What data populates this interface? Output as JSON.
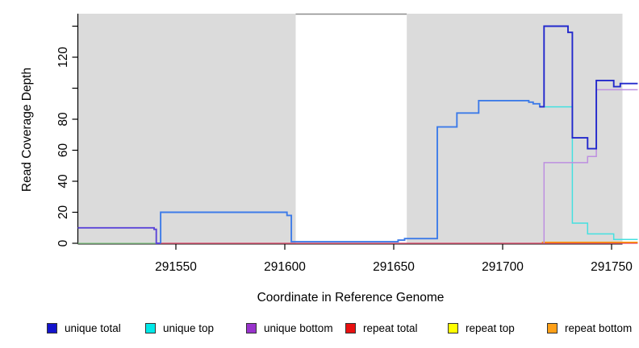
{
  "figure": {
    "y_axis_title": "Read Coverage Depth",
    "x_axis_title": "Coordinate in Reference Genome"
  },
  "legend": {
    "items": [
      {
        "label": "unique total",
        "color": "#1414CC"
      },
      {
        "label": "unique top",
        "color": "#00E8E8"
      },
      {
        "label": "unique bottom",
        "color": "#9933CC"
      },
      {
        "label": "repeat total",
        "color": "#E81010"
      },
      {
        "label": "repeat top",
        "color": "#FFFF00"
      },
      {
        "label": "repeat bottom",
        "color": "#FFA018"
      }
    ]
  },
  "chart_data": {
    "type": "line",
    "subtype": "step-coverage",
    "title": "",
    "xlabel": "Coordinate in Reference Genome",
    "ylabel": "Read Coverage Depth",
    "xlim": [
      291505,
      291762
    ],
    "ylim": [
      0,
      148
    ],
    "grid": false,
    "legend_position": "bottom",
    "x_ticks": [
      291550,
      291600,
      291650,
      291700,
      291750
    ],
    "y_ticks": [
      {
        "v": 0,
        "label": "0"
      },
      {
        "v": 20,
        "label": "20"
      },
      {
        "v": 40,
        "label": "40"
      },
      {
        "v": 60,
        "label": "60"
      },
      {
        "v": 80,
        "label": "80"
      },
      {
        "v": 100,
        "label": ""
      },
      {
        "v": 120,
        "label": "120"
      },
      {
        "v": 140,
        "label": ""
      }
    ],
    "background_bands": [
      {
        "from": 291505,
        "to": 291605,
        "color": "#DBDBDB"
      },
      {
        "from": 291605,
        "to": 291656,
        "color": "#FFFFFF",
        "top_border": "#8C8C8C"
      },
      {
        "from": 291656,
        "to": 291755,
        "color": "#DBDBDB"
      }
    ],
    "series": [
      {
        "name": "unique total",
        "color": "#1414CC",
        "points": [
          [
            291505,
            10
          ],
          [
            291540,
            9
          ],
          [
            291541,
            0
          ],
          [
            291543,
            20
          ],
          [
            291601,
            18
          ],
          [
            291603,
            1
          ],
          [
            291652,
            2
          ],
          [
            291655,
            3
          ],
          [
            291670,
            75
          ],
          [
            291679,
            84
          ],
          [
            291689,
            92
          ],
          [
            291712,
            91
          ],
          [
            291714,
            90
          ],
          [
            291717,
            88
          ],
          [
            291719,
            140
          ],
          [
            291730,
            136
          ],
          [
            291732,
            68
          ],
          [
            291739,
            61
          ],
          [
            291743,
            105
          ],
          [
            291751,
            101
          ],
          [
            291754,
            103
          ],
          [
            291762,
            103
          ]
        ]
      },
      {
        "name": "unique top",
        "color": "#00E8E8",
        "points": [
          [
            291505,
            0
          ],
          [
            291543,
            20
          ],
          [
            291601,
            18
          ],
          [
            291603,
            1
          ],
          [
            291652,
            2
          ],
          [
            291655,
            3
          ],
          [
            291670,
            75
          ],
          [
            291679,
            84
          ],
          [
            291689,
            92
          ],
          [
            291712,
            91
          ],
          [
            291714,
            90
          ],
          [
            291717,
            88
          ],
          [
            291732,
            13
          ],
          [
            291739,
            6
          ],
          [
            291751,
            2.5
          ],
          [
            291762,
            2.5
          ]
        ]
      },
      {
        "name": "unique bottom",
        "color": "#9933CC",
        "points": [
          [
            291505,
            10
          ],
          [
            291540,
            9
          ],
          [
            291541,
            0
          ],
          [
            291719,
            52
          ],
          [
            291739,
            56
          ],
          [
            291743,
            99
          ],
          [
            291762,
            99
          ]
        ]
      },
      {
        "name": "repeat total",
        "color": "#E81010",
        "points": [
          [
            291505,
            0
          ],
          [
            291762,
            0
          ]
        ]
      },
      {
        "name": "repeat top",
        "color": "#FFFF00",
        "points": [
          [
            291505,
            0
          ],
          [
            291762,
            0
          ]
        ]
      },
      {
        "name": "repeat bottom",
        "color": "#FFA018",
        "points": [
          [
            291718,
            0.7
          ],
          [
            291762,
            0.7
          ]
        ]
      }
    ],
    "render_layers": [
      {
        "name": "repeat-total-baseline",
        "color": "#E04466",
        "width": 1.2,
        "points": [
          [
            291543,
            0
          ],
          [
            291762,
            0
          ]
        ]
      },
      {
        "name": "baseline-left-green",
        "color": "#82C882",
        "width": 1.2,
        "points": [
          [
            291505,
            0
          ],
          [
            291543,
            0
          ]
        ]
      },
      {
        "name": "repeat-bottom-line",
        "color": "#FF9900",
        "width": 1.5,
        "points": [
          [
            291718,
            0.7
          ],
          [
            291762,
            0.7
          ]
        ]
      },
      {
        "name": "unique-total-plus-bottom-blend",
        "color": "#5B45D8",
        "width": 1.9,
        "points": [
          [
            291505,
            10
          ],
          [
            291540,
            9
          ],
          [
            291541,
            0
          ],
          [
            291543,
            0
          ]
        ]
      },
      {
        "name": "unique-total-plus-top-blend",
        "color": "#3D7BE8",
        "width": 1.9,
        "points": [
          [
            291543,
            0
          ],
          [
            291543,
            20
          ],
          [
            291601,
            18
          ],
          [
            291603,
            1
          ],
          [
            291652,
            2
          ],
          [
            291655,
            3
          ],
          [
            291670,
            75
          ],
          [
            291679,
            84
          ],
          [
            291689,
            92
          ],
          [
            291712,
            91
          ],
          [
            291714,
            90
          ],
          [
            291717,
            88
          ],
          [
            291719,
            88
          ]
        ]
      },
      {
        "name": "unique-top-line",
        "color": "#45E0E0",
        "width": 1.5,
        "points": [
          [
            291719,
            88
          ],
          [
            291732,
            13
          ],
          [
            291739,
            6
          ],
          [
            291751,
            2.5
          ],
          [
            291762,
            2.5
          ]
        ]
      },
      {
        "name": "unique-bottom-line",
        "color": "#BD8FE0",
        "width": 1.5,
        "points": [
          [
            291719,
            0
          ],
          [
            291719,
            52
          ],
          [
            291739,
            56
          ],
          [
            291743,
            99
          ],
          [
            291762,
            99
          ]
        ]
      },
      {
        "name": "unique-total-line",
        "color": "#2228CC",
        "width": 1.9,
        "points": [
          [
            291717,
            88
          ],
          [
            291719,
            140
          ],
          [
            291730,
            136
          ],
          [
            291732,
            68
          ],
          [
            291739,
            61
          ],
          [
            291743,
            105
          ],
          [
            291751,
            101
          ],
          [
            291754,
            103
          ],
          [
            291762,
            103
          ]
        ]
      }
    ]
  }
}
